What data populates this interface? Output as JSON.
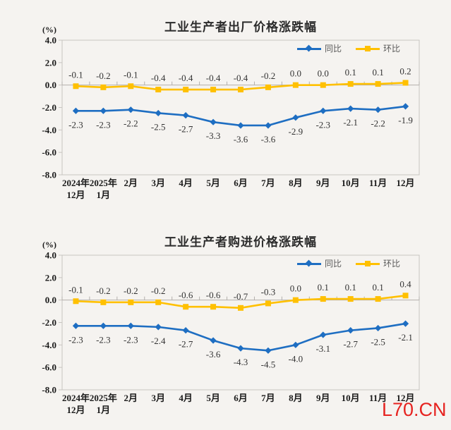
{
  "watermark": {
    "text": "L70.CN",
    "color": "#e62320"
  },
  "colors": {
    "yoy_blue": "#1e6ec2",
    "mom_yellow": "#ffc000",
    "plot_border": "#c8c5c1",
    "zero_axis": "#b3b0ac",
    "tick_label": "#1a1a1a",
    "data_label": "#333333",
    "legend_text": "#595959",
    "title_text": "#2b2b2b",
    "background": "#f5f3f0"
  },
  "chart_data": [
    {
      "type": "line",
      "title": "工业生产者出厂价格涨跌幅",
      "unit_label": "(%)",
      "ylim": [
        -8.0,
        4.0
      ],
      "y_ticks": [
        "4.0",
        "2.0",
        "0.0",
        "-2.0",
        "-4.0",
        "-6.0",
        "-8.0"
      ],
      "grid": false,
      "legend_position": "top-right",
      "categories": [
        "2024年12月",
        "2025年1月",
        "2月",
        "3月",
        "4月",
        "5月",
        "6月",
        "7月",
        "8月",
        "9月",
        "10月",
        "11月",
        "12月"
      ],
      "category_lines": [
        [
          "2024年",
          "12月"
        ],
        [
          "2025年",
          "1月"
        ],
        [
          "2月"
        ],
        [
          "3月"
        ],
        [
          "4月"
        ],
        [
          "5月"
        ],
        [
          "6月"
        ],
        [
          "7月"
        ],
        [
          "8月"
        ],
        [
          "9月"
        ],
        [
          "10月"
        ],
        [
          "11月"
        ],
        [
          "12月"
        ]
      ],
      "series": [
        {
          "name": "同比",
          "color": "#1e6ec2",
          "marker": "diamond",
          "values": [
            -2.3,
            -2.3,
            -2.2,
            -2.5,
            -2.7,
            -3.3,
            -3.6,
            -3.6,
            -2.9,
            -2.3,
            -2.1,
            -2.2,
            -1.9
          ]
        },
        {
          "name": "环比",
          "color": "#ffc000",
          "marker": "square",
          "values": [
            -0.1,
            -0.2,
            -0.1,
            -0.4,
            -0.4,
            -0.4,
            -0.4,
            -0.2,
            0.0,
            0.0,
            0.1,
            0.1,
            0.2
          ]
        }
      ]
    },
    {
      "type": "line",
      "title": "工业生产者购进价格涨跌幅",
      "unit_label": "(%)",
      "ylim": [
        -8.0,
        4.0
      ],
      "y_ticks": [
        "4.0",
        "2.0",
        "0.0",
        "-2.0",
        "-4.0",
        "-6.0",
        "-8.0"
      ],
      "grid": false,
      "legend_position": "top-right",
      "categories": [
        "2024年12月",
        "2025年1月",
        "2月",
        "3月",
        "4月",
        "5月",
        "6月",
        "7月",
        "8月",
        "9月",
        "10月",
        "11月",
        "12月"
      ],
      "category_lines": [
        [
          "2024年",
          "12月"
        ],
        [
          "2025年",
          "1月"
        ],
        [
          "2月"
        ],
        [
          "3月"
        ],
        [
          "4月"
        ],
        [
          "5月"
        ],
        [
          "6月"
        ],
        [
          "7月"
        ],
        [
          "8月"
        ],
        [
          "9月"
        ],
        [
          "10月"
        ],
        [
          "11月"
        ],
        [
          "12月"
        ]
      ],
      "series": [
        {
          "name": "同比",
          "color": "#1e6ec2",
          "marker": "diamond",
          "values": [
            -2.3,
            -2.3,
            -2.3,
            -2.4,
            -2.7,
            -3.6,
            -4.3,
            -4.5,
            -4.0,
            -3.1,
            -2.7,
            -2.5,
            -2.1
          ]
        },
        {
          "name": "环比",
          "color": "#ffc000",
          "marker": "square",
          "values": [
            -0.1,
            -0.2,
            -0.2,
            -0.2,
            -0.6,
            -0.6,
            -0.7,
            -0.3,
            0.0,
            0.1,
            0.1,
            0.1,
            0.4
          ]
        }
      ]
    }
  ]
}
